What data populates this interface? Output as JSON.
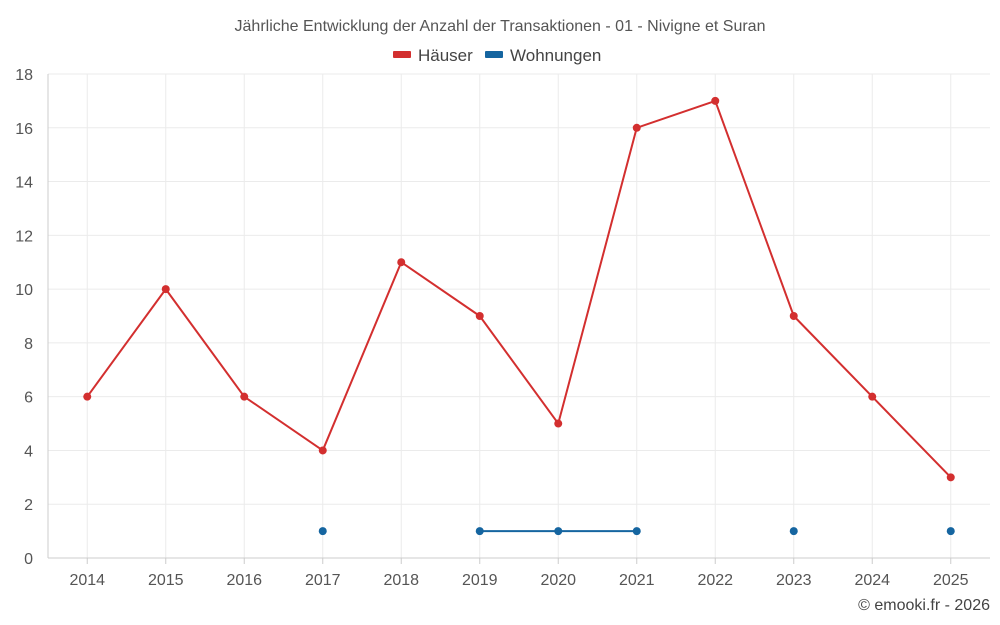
{
  "chart_data": {
    "type": "line",
    "title": "Jährliche Entwicklung der Anzahl der Transaktionen - 01 - Nivigne et Suran",
    "categories": [
      "2014",
      "2015",
      "2016",
      "2017",
      "2018",
      "2019",
      "2020",
      "2021",
      "2022",
      "2023",
      "2024",
      "2025"
    ],
    "series": [
      {
        "name": "Häuser",
        "color": "#d32f2f",
        "values": [
          6,
          10,
          6,
          4,
          11,
          9,
          5,
          16,
          17,
          9,
          6,
          3
        ]
      },
      {
        "name": "Wohnungen",
        "color": "#1565a0",
        "values": [
          null,
          null,
          null,
          1,
          null,
          1,
          1,
          1,
          null,
          1,
          null,
          1
        ]
      }
    ],
    "ylim": [
      0,
      18
    ],
    "yticks": [
      "0",
      "2",
      "4",
      "6",
      "8",
      "10",
      "12",
      "14",
      "16",
      "18"
    ],
    "grid": true,
    "legend_position": "top-center",
    "xlabel": "",
    "ylabel": ""
  },
  "credit": "© emooki.fr - 2026"
}
